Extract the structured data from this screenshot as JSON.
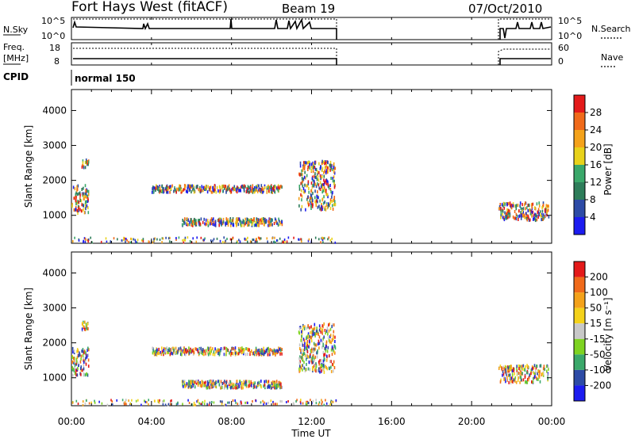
{
  "header": {
    "title": "Fort Hays West (fitACF)",
    "beam": "Beam 19",
    "date": "07/Oct/2010"
  },
  "status_panels": {
    "nsky_label": "N.Sky",
    "nsky_ticks": [
      "10^5",
      "10^0"
    ],
    "nsearch_label": "N.Search",
    "nsearch_ticks": [
      "10^5",
      "10^0"
    ],
    "freq_label": "Freq.",
    "freq_unit": "[MHz]",
    "freq_ticks": [
      "18",
      "8"
    ],
    "nave_label": "Nave",
    "nave_ticks": [
      "60",
      "0"
    ],
    "cpid_label": "CPID",
    "cpid_value": "normal 150"
  },
  "chart_data": [
    {
      "type": "heatmap",
      "name": "power",
      "ylabel": "Slant Range [km]",
      "yticks": [
        1000,
        2000,
        3000,
        4000
      ],
      "ylim": [
        200,
        4600
      ],
      "colorbar_label": "Power [dB]",
      "colorbar_ticks": [
        "4",
        "8",
        "12",
        "16",
        "20",
        "24",
        "28"
      ],
      "colorbar_colors": [
        "#1c1cf0",
        "#2d4ba6",
        "#2e7d5a",
        "#3aa86a",
        "#e8d21a",
        "#f4a21a",
        "#f06a1a",
        "#e41a1a"
      ],
      "xlim": [
        "00:00",
        "24:00"
      ],
      "echo_regions": [
        {
          "from": "00:00",
          "to": "00:50",
          "range_km": [
            1100,
            1900
          ]
        },
        {
          "from": "00:30",
          "to": "00:50",
          "range_km": [
            2400,
            2650
          ]
        },
        {
          "from": "04:00",
          "to": "10:30",
          "range_km": [
            1700,
            1900
          ]
        },
        {
          "from": "05:30",
          "to": "10:30",
          "range_km": [
            750,
            950
          ]
        },
        {
          "from": "11:20",
          "to": "13:10",
          "range_km": [
            1200,
            2600
          ]
        },
        {
          "from": "21:20",
          "to": "23:50",
          "range_km": [
            900,
            1400
          ]
        }
      ]
    },
    {
      "type": "heatmap",
      "name": "velocity",
      "ylabel": "Slant Range [km]",
      "yticks": [
        1000,
        2000,
        3000,
        4000
      ],
      "ylim": [
        200,
        4600
      ],
      "colorbar_label": "Velocity [m s⁻¹]",
      "colorbar_ticks": [
        "200",
        "100",
        "50",
        "15",
        "-15",
        "-50",
        "-100",
        "-200"
      ],
      "colorbar_colors": [
        "#1c1cf0",
        "#2d4ba6",
        "#3aa86a",
        "#7ed321",
        "#c8c8c8",
        "#f4d21a",
        "#f4a21a",
        "#f06a1a",
        "#e41a1a"
      ],
      "xlim": [
        "00:00",
        "24:00"
      ],
      "echo_regions": [
        {
          "from": "00:00",
          "to": "00:50",
          "range_km": [
            1100,
            1900
          ]
        },
        {
          "from": "00:30",
          "to": "00:50",
          "range_km": [
            2400,
            2650
          ]
        },
        {
          "from": "04:00",
          "to": "10:30",
          "range_km": [
            1700,
            1900
          ]
        },
        {
          "from": "05:30",
          "to": "10:30",
          "range_km": [
            750,
            950
          ]
        },
        {
          "from": "11:20",
          "to": "13:10",
          "range_km": [
            1200,
            2600
          ]
        },
        {
          "from": "21:20",
          "to": "23:50",
          "range_km": [
            900,
            1400
          ]
        }
      ]
    }
  ],
  "time_axis": {
    "ticks": [
      "00:00",
      "04:00",
      "08:00",
      "12:00",
      "16:00",
      "20:00",
      "00:00"
    ],
    "label": "Time UT"
  }
}
